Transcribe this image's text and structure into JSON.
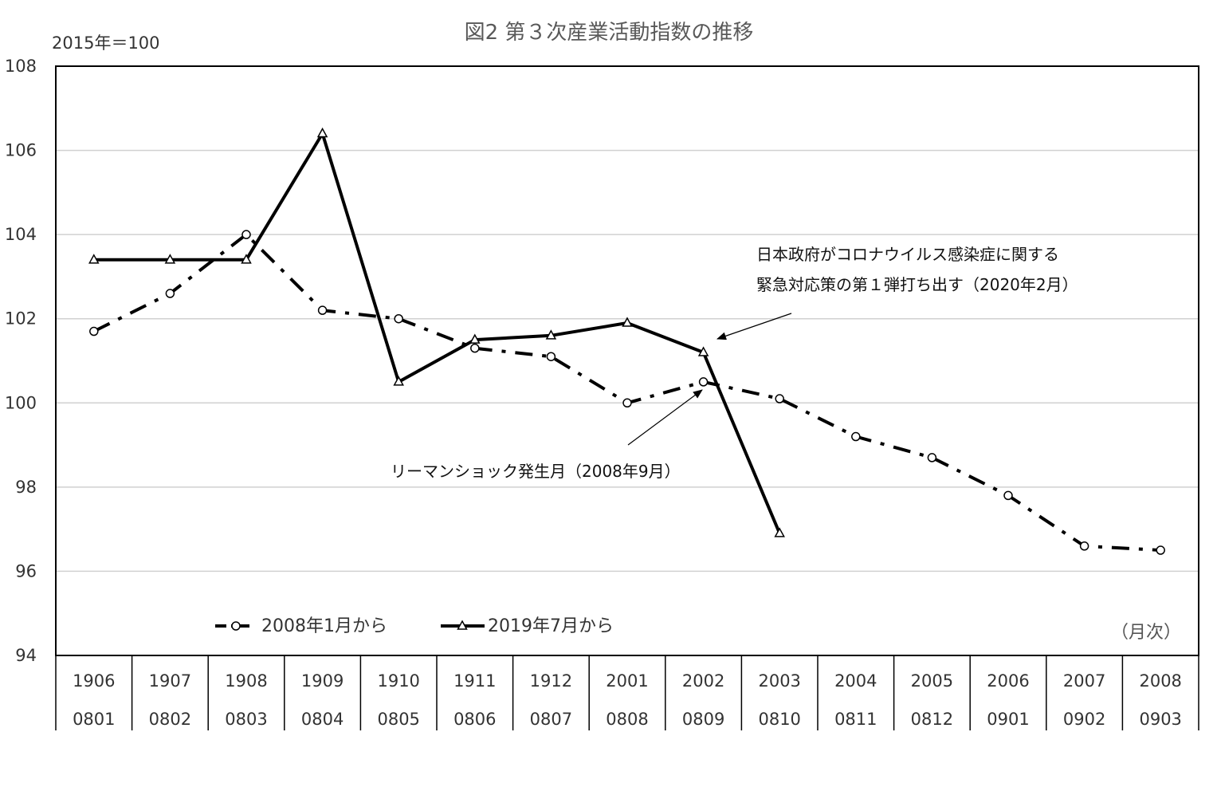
{
  "chart_data": {
    "type": "line",
    "title": "図2 第３次産業活動指数の推移",
    "unit_label": "2015年＝100",
    "x_unit": "（月次）",
    "ylim": [
      94,
      108
    ],
    "yticks": [
      94,
      96,
      98,
      100,
      102,
      104,
      106,
      108
    ],
    "grid": true,
    "legend_position": "bottom-left",
    "categories_top": [
      "1906",
      "1907",
      "1908",
      "1909",
      "1910",
      "1911",
      "1912",
      "2001",
      "2002",
      "2003",
      "2004",
      "2005",
      "2006",
      "2007",
      "2008"
    ],
    "categories_bottom": [
      "0801",
      "0802",
      "0803",
      "0804",
      "0805",
      "0806",
      "0807",
      "0808",
      "0809",
      "0810",
      "0811",
      "0812",
      "0901",
      "0902",
      "0903"
    ],
    "series": [
      {
        "name": "2008年1月から",
        "style": "dash-dot",
        "marker": "circle",
        "color": "#000000",
        "values": [
          101.7,
          102.6,
          104.0,
          102.2,
          102.0,
          101.3,
          101.1,
          100.0,
          100.5,
          100.1,
          99.2,
          98.7,
          97.8,
          96.6,
          96.5
        ]
      },
      {
        "name": "2019年7月から",
        "style": "solid",
        "marker": "triangle",
        "color": "#000000",
        "values": [
          103.4,
          103.4,
          103.4,
          106.4,
          100.5,
          101.5,
          101.6,
          101.9,
          101.2,
          96.9,
          null,
          null,
          null,
          null,
          null
        ]
      }
    ],
    "annotations": [
      {
        "line1": "日本政府がコロナウイルス感染症に関する",
        "line2": "緊急対応策の第１弾打ち出す（2020年2月）",
        "target_index": 8,
        "target_series": 1
      },
      {
        "line1": "リーマンショック発生月（2008年9月）",
        "target_index": 8,
        "target_series": 0
      }
    ]
  }
}
